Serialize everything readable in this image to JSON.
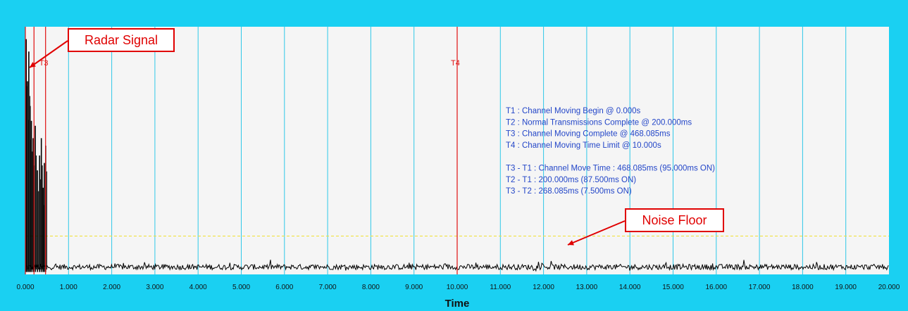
{
  "chart_data": {
    "type": "line",
    "xlabel": "Time",
    "ylabel": "",
    "xlim": [
      0,
      20
    ],
    "x_ticks": [
      "0.000",
      "1.000",
      "2.000",
      "3.000",
      "4.000",
      "5.000",
      "6.000",
      "7.000",
      "8.000",
      "9.000",
      "10.000",
      "11.000",
      "12.000",
      "13.000",
      "14.000",
      "15.000",
      "16.000",
      "17.000",
      "18.000",
      "19.000",
      "20.000"
    ],
    "grid": true,
    "markers": [
      {
        "name": "T1",
        "x": 0.0
      },
      {
        "name": "T2",
        "x": 0.2
      },
      {
        "name": "T3",
        "x": 0.468085
      },
      {
        "name": "T4",
        "x": 10.0
      }
    ],
    "marker_labels": {
      "t3": "T3",
      "t4": "T4"
    },
    "threshold_line": {
      "y": 0.155
    },
    "noise_floor_level": 0.03,
    "radar_bursts": [
      {
        "x": 0.02,
        "y": 0.95
      },
      {
        "x": 0.05,
        "y": 0.78
      },
      {
        "x": 0.08,
        "y": 0.9
      },
      {
        "x": 0.11,
        "y": 0.68
      },
      {
        "x": 0.14,
        "y": 0.62
      },
      {
        "x": 0.18,
        "y": 0.55
      },
      {
        "x": 0.23,
        "y": 0.6
      },
      {
        "x": 0.28,
        "y": 0.42
      },
      {
        "x": 0.33,
        "y": 0.48
      },
      {
        "x": 0.37,
        "y": 0.55
      },
      {
        "x": 0.41,
        "y": 0.35
      },
      {
        "x": 0.44,
        "y": 0.45
      },
      {
        "x": 0.47,
        "y": 0.52
      }
    ],
    "info_lines": [
      "T1 : Channel Moving Begin @ 0.000s",
      "T2 : Normal Transmissions Complete @ 200.000ms",
      "T3 : Channel Moving Complete @ 468.085ms",
      "T4 : Channel Moving Time Limit @ 10.000s",
      "",
      "T3 - T1 : Channel Move Time : 468.085ms (95.000ms ON)",
      "T2 - T1 : 200.000ms (87.500ms ON)",
      "T3 - T2 : 268.085ms (7.500ms ON)"
    ],
    "annotations": {
      "radar_signal": "Radar Signal",
      "noise_floor": "Noise Floor"
    },
    "colors": {
      "background": "#1ad0f2",
      "plot_bg": "#f5f5f5",
      "grid": "#2ec8e8",
      "marker": "#e01010",
      "trace": "#000000",
      "threshold": "#f0e030",
      "info_text": "#2346c8",
      "callout": "#e00000"
    }
  }
}
